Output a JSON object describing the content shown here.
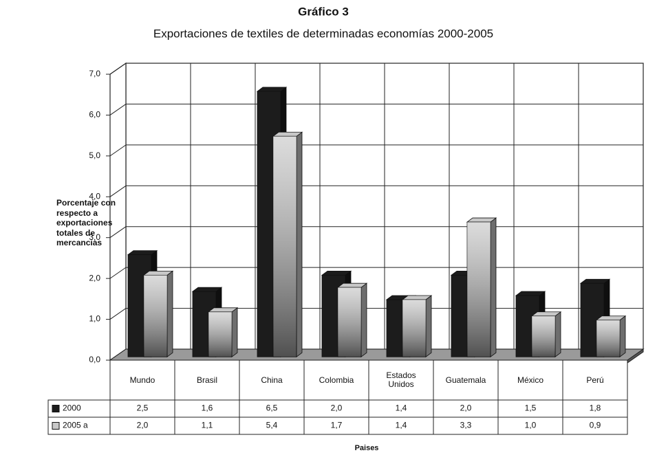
{
  "chart_data": {
    "type": "bar3d",
    "title": "Gráfico 3",
    "subtitle": "Exportaciones de textiles de determinadas economías 2000-2005",
    "y_label": "Porcentaje con respecto a exportaciones totales de mercancias",
    "x_label": "Paises",
    "categories": [
      "Mundo",
      "Brasil",
      "China",
      "Colombia",
      "Estados Unidos",
      "Guatemala",
      "México",
      "Perú"
    ],
    "series": [
      {
        "name": "2000",
        "color": "#1c1c1c",
        "values": [
          2.5,
          1.6,
          6.5,
          2.0,
          1.4,
          2.0,
          1.5,
          1.8
        ],
        "value_labels": [
          "2,5",
          "1,6",
          "6,5",
          "2,0",
          "1,4",
          "2,0",
          "1,5",
          "1,8"
        ]
      },
      {
        "name": "2005 a",
        "color": "#c8c8c8",
        "values": [
          2.0,
          1.1,
          5.4,
          1.7,
          1.4,
          3.3,
          1.0,
          0.9
        ],
        "value_labels": [
          "2,0",
          "1,1",
          "5,4",
          "1,7",
          "1,4",
          "3,3",
          "1,0",
          "0,9"
        ]
      }
    ],
    "ylim": [
      0,
      7
    ],
    "yticks": [
      {
        "value": 0,
        "label": "0,0"
      },
      {
        "value": 1,
        "label": "1,0"
      },
      {
        "value": 2,
        "label": "2,0"
      },
      {
        "value": 3,
        "label": "3,0"
      },
      {
        "value": 4,
        "label": "4,0"
      },
      {
        "value": 5,
        "label": "5,0"
      },
      {
        "value": 6,
        "label": "6,0"
      },
      {
        "value": 7,
        "label": "7,0"
      }
    ],
    "grid": true
  }
}
